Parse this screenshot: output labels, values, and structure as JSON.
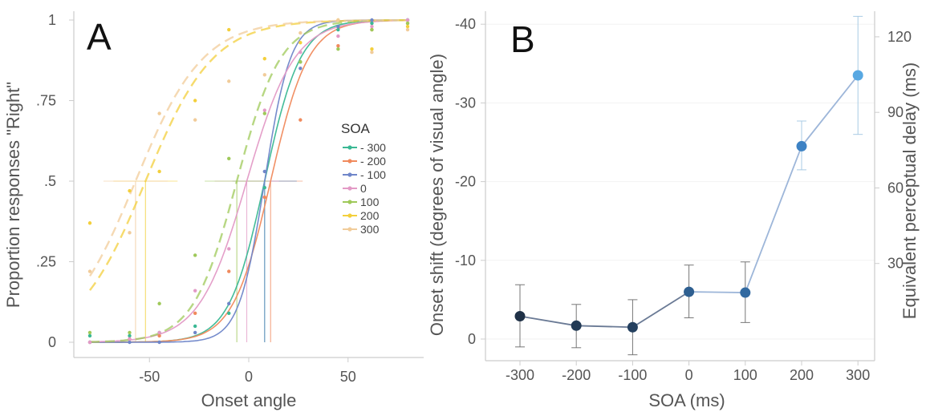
{
  "colors": {
    "axis": "#cccccc",
    "grid": "#f2f2f2",
    "soa_series": [
      "#3ab894",
      "#f08a5d",
      "#6f86c9",
      "#e39ac6",
      "#9fc95a",
      "#f3cf3c",
      "#f1cc9a"
    ],
    "line_b": "#9db6d9",
    "error_bar": "#777777",
    "error_bar_light": "#a9cbe4",
    "point_colors": [
      "#1f3147",
      "#223a55",
      "#24405f",
      "#2e5f90",
      "#3169a0",
      "#3d82c4",
      "#58a8e2"
    ]
  },
  "chart_data": [
    {
      "panel": "A",
      "type": "line",
      "xlabel": "Onset angle",
      "ylabel": "Proportion responses \"Right\"",
      "xlim": [
        -90,
        90
      ],
      "ylim": [
        0,
        1
      ],
      "xticks": [
        -50,
        0,
        50
      ],
      "xtick_labels": [
        "-50",
        "0",
        "50"
      ],
      "yticks": [
        0,
        0.25,
        0.5,
        0.75,
        1
      ],
      "ytick_labels": [
        "0",
        ".25",
        ".5",
        ".75",
        "1"
      ],
      "legend": {
        "title": "SOA",
        "placement": "center-right",
        "labels": [
          "- 300",
          "- 200",
          "- 100",
          "0",
          "100",
          "200",
          "300"
        ]
      },
      "series": [
        {
          "name": "- 300",
          "pse": 8,
          "slope": 9,
          "dashed": false,
          "x": [
            -80,
            -60,
            -45,
            -27,
            -10,
            8,
            26,
            45,
            62,
            80
          ],
          "y": [
            0.02,
            0.02,
            0.03,
            0.05,
            0.09,
            0.48,
            0.87,
            0.97,
            0.99,
            1.0
          ]
        },
        {
          "name": "- 200",
          "pse": 11,
          "slope": 9.5,
          "dashed": false,
          "x": [
            -80,
            -60,
            -45,
            -27,
            -10,
            8,
            26,
            45,
            62,
            80
          ],
          "y": [
            0.0,
            0.01,
            0.02,
            0.09,
            0.22,
            0.45,
            0.69,
            0.92,
            0.97,
            0.99
          ]
        },
        {
          "name": "- 100",
          "pse": 8,
          "slope": 6.5,
          "dashed": false,
          "x": [
            -80,
            -60,
            -45,
            -27,
            -10,
            8,
            26,
            45,
            62,
            80
          ],
          "y": [
            0.0,
            0.0,
            0.0,
            0.03,
            0.12,
            0.53,
            0.85,
            0.98,
            1.0,
            1.0
          ]
        },
        {
          "name": "0",
          "pse": -1,
          "slope": 12,
          "dashed": false,
          "x": [
            -80,
            -60,
            -45,
            -27,
            -10,
            8,
            26,
            45,
            62,
            80
          ],
          "y": [
            0.0,
            0.01,
            0.03,
            0.16,
            0.29,
            0.72,
            0.9,
            0.95,
            0.98,
            1.0
          ]
        },
        {
          "name": "100",
          "pse": -6,
          "slope": 11,
          "dashed": true,
          "x": [
            -80,
            -60,
            -45,
            -27,
            -10,
            8,
            26,
            45,
            62,
            80
          ],
          "y": [
            0.03,
            0.03,
            0.12,
            0.27,
            0.57,
            0.71,
            0.87,
            0.91,
            0.97,
            0.99
          ]
        },
        {
          "name": "200",
          "pse": -52,
          "slope": 17,
          "dashed": true,
          "x": [
            -80,
            -60,
            -45,
            -27,
            -10,
            8,
            26,
            45,
            62,
            80
          ],
          "y": [
            0.37,
            0.47,
            0.53,
            0.75,
            0.97,
            0.88,
            0.93,
            1.0,
            0.91,
            0.98
          ]
        },
        {
          "name": "300",
          "pse": -57,
          "slope": 17,
          "dashed": true,
          "x": [
            -80,
            -60,
            -45,
            -27,
            -10,
            8,
            26,
            45,
            62,
            80
          ],
          "y": [
            0.22,
            0.34,
            0.71,
            0.69,
            0.81,
            0.83,
            0.96,
            1.0,
            0.9,
            0.97
          ]
        }
      ]
    },
    {
      "panel": "B",
      "type": "line",
      "xlabel": "SOA (ms)",
      "ylabel": "Onset shift (degrees of visual angle)",
      "y2label": "Equivalent perceptual delay (ms)",
      "categories": [
        "-300",
        "-200",
        "-100",
        "0",
        "100",
        "200",
        "300"
      ],
      "values": [
        -2.9,
        -1.7,
        -1.5,
        -6.0,
        -5.9,
        -24.5,
        -33.5
      ],
      "error_low": [
        1.0,
        1.1,
        2.0,
        -2.7,
        -2.1,
        -21.5,
        -26.0
      ],
      "error_high": [
        -6.9,
        -4.4,
        -5.0,
        -9.4,
        -9.8,
        -27.7,
        -41.0
      ],
      "ylim": [
        2,
        -42
      ],
      "yticks": [
        0,
        -10,
        -20,
        -30,
        -40
      ],
      "ytick_labels": [
        "0",
        "-10",
        "-20",
        "-30",
        "-40"
      ],
      "y2ticks": [
        30,
        60,
        90,
        120
      ],
      "y2tick_labels": [
        "30",
        "60",
        "90",
        "120"
      ],
      "y2_per_y": 3.125,
      "grid": true
    }
  ]
}
